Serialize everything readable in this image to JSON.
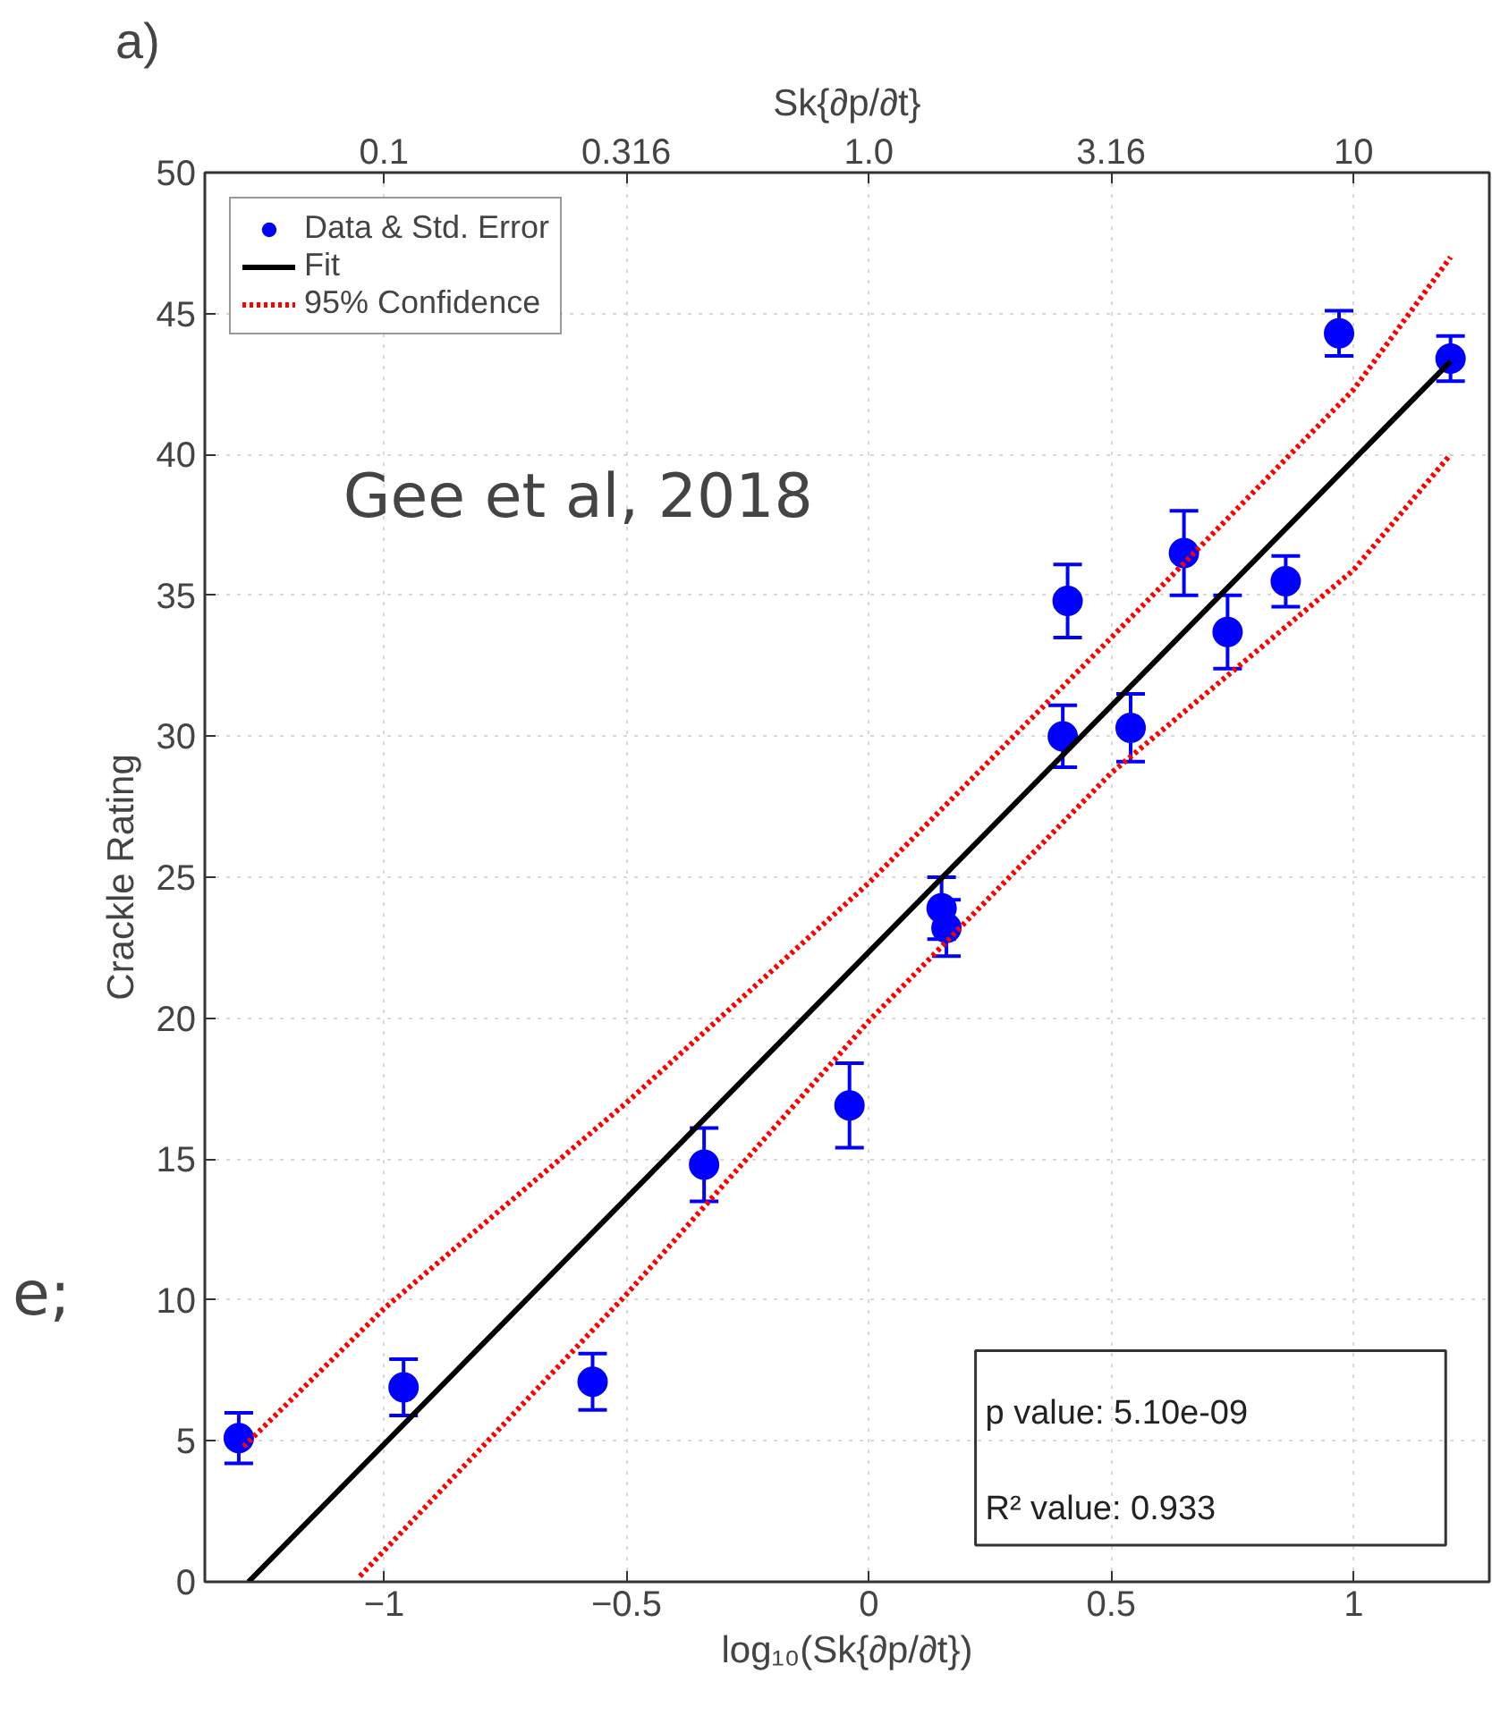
{
  "chart_data": {
    "type": "scatter",
    "title": "a)",
    "xlabel": "log₁₀(Sk{∂p/∂t})",
    "ylabel": "Crackle Rating",
    "x2label": "Sk{∂p/∂t}",
    "xlim": [
      -1.37,
      1.28
    ],
    "xticks": [
      -1,
      -0.5,
      0,
      0.5,
      1
    ],
    "log": "x2",
    "x2lim": [
      0.0427,
      19.05
    ],
    "x2ticks": [
      0.1,
      0.316,
      {
        "value": 1,
        "label": "1.0"
      },
      3.16,
      10
    ],
    "ylim": [
      0,
      50
    ],
    "yticks": [
      0,
      5,
      10,
      15,
      20,
      25,
      30,
      35,
      40,
      45,
      50
    ],
    "grid": true,
    "legend": "top left",
    "series": [
      {
        "name": "Data & Std. Error",
        "color": "#0000ff",
        "marker": "circle",
        "x": [
          -1.3,
          -0.96,
          -0.57,
          -0.34,
          -0.04,
          0.15,
          0.16,
          0.4,
          0.41,
          0.54,
          0.65,
          0.74,
          0.86,
          0.97,
          1.2
        ],
        "values": [
          5.1,
          6.9,
          7.1,
          14.8,
          16.9,
          23.9,
          23.2,
          30.0,
          34.8,
          30.3,
          36.5,
          33.7,
          35.5,
          44.3,
          43.4
        ],
        "errors": [
          0.9,
          1.0,
          1.0,
          1.3,
          1.5,
          1.1,
          1.0,
          1.1,
          1.3,
          1.2,
          1.5,
          1.3,
          0.9,
          0.8,
          0.8
        ]
      },
      {
        "name": "Fit",
        "type": "line",
        "color": "#000000",
        "line_style": "solid",
        "x": [
          -1.28,
          1.2
        ],
        "values": [
          0,
          43.3
        ]
      },
      {
        "name": "95% Confidence",
        "type": "line",
        "color": "#ff0000",
        "line_style": "dotted",
        "x": [
          -1.29,
          -1,
          -0.5,
          0,
          0.5,
          1,
          1.2
        ],
        "values": [
          4.8,
          9.7,
          17.0,
          24.8,
          33.5,
          42.3,
          47.0
        ]
      },
      {
        "type": "line",
        "color": "#ff0000",
        "line_style": "dotted",
        "x": [
          -1.05,
          -0.5,
          0,
          0.5,
          1,
          1.2
        ],
        "values": [
          0.2,
          10.2,
          19.9,
          28.7,
          35.9,
          40.0
        ]
      }
    ],
    "annotations": [
      "Gee et al, 2018",
      "p value: 5.10e-09",
      "R² value: 0.933",
      "e;"
    ]
  }
}
